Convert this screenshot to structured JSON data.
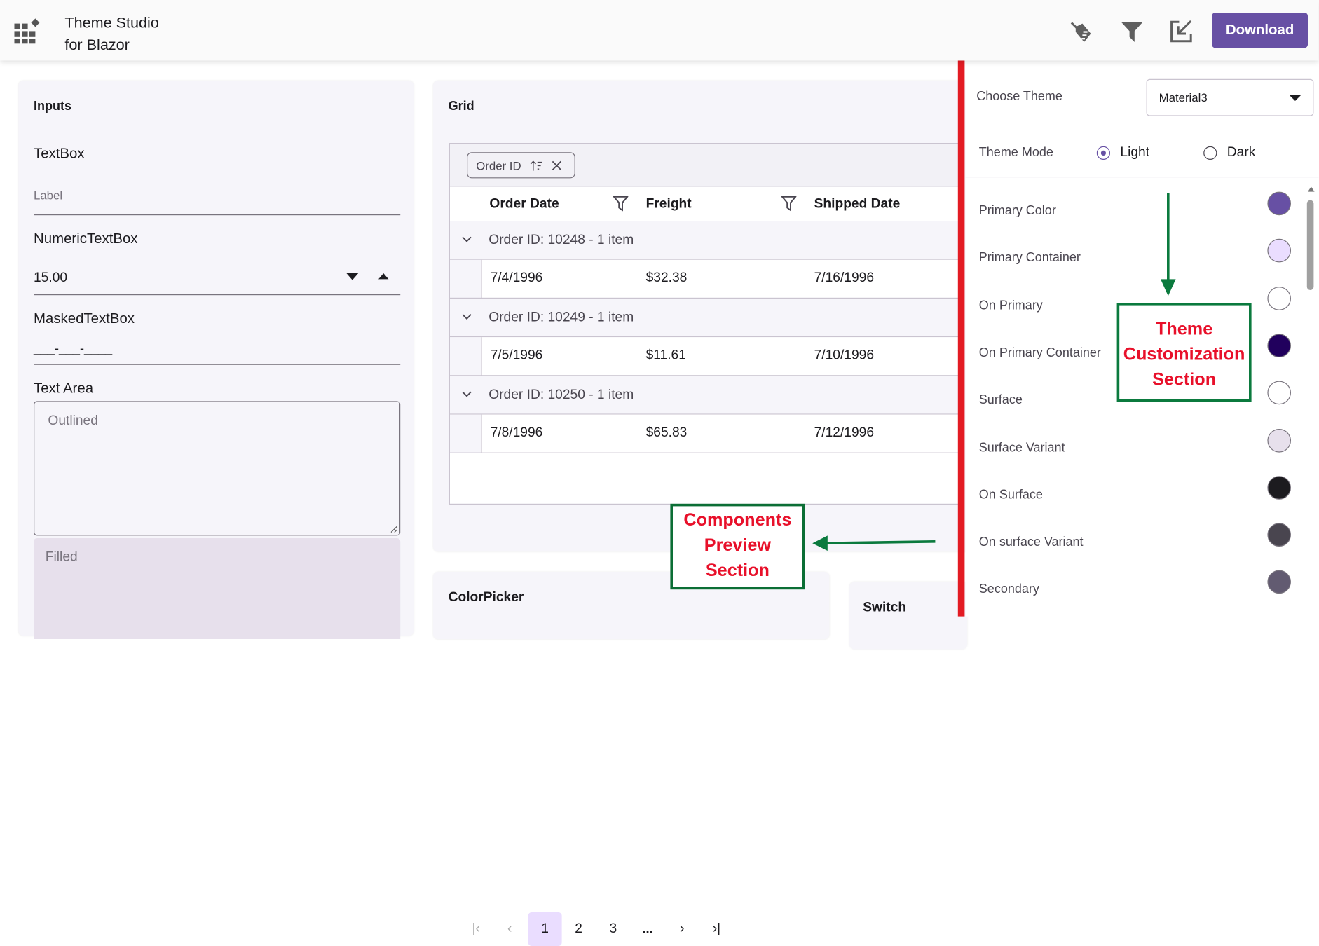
{
  "header": {
    "title_line1": "Theme Studio",
    "title_line2": "for Blazor",
    "download_label": "Download",
    "icons": [
      "app-grid-icon",
      "brush-icon",
      "filter-icon",
      "import-icon"
    ]
  },
  "inputs": {
    "title": "Inputs",
    "textbox_label": "TextBox",
    "textbox_placeholder": "Label",
    "numeric_label": "NumericTextBox",
    "numeric_value": "15.00",
    "masked_label": "MaskedTextBox",
    "masked_value": "___-___-____",
    "textarea_label": "Text Area",
    "outlined_placeholder": "Outlined",
    "filled_placeholder": "Filled"
  },
  "grid": {
    "title": "Grid",
    "group_chip": "Order ID",
    "columns": [
      "Order Date",
      "Freight",
      "Shipped Date"
    ],
    "groups": [
      {
        "caption": "Order ID: 10248 - 1 item",
        "row": [
          "7/4/1996",
          "$32.38",
          "7/16/1996"
        ]
      },
      {
        "caption": "Order ID: 10249 - 1 item",
        "row": [
          "7/5/1996",
          "$11.61",
          "7/10/1996"
        ]
      },
      {
        "caption": "Order ID: 10250 - 1 item",
        "row": [
          "7/8/1996",
          "$65.83",
          "7/12/1996"
        ]
      }
    ],
    "pager": {
      "pages": [
        "1",
        "2",
        "3",
        "..."
      ],
      "current": "1"
    }
  },
  "colorpicker": {
    "title": "ColorPicker"
  },
  "switch": {
    "title": "Switch"
  },
  "annotations": {
    "preview": [
      "Components",
      "Preview",
      "Section"
    ],
    "customization": [
      "Theme",
      "Customization",
      "Section"
    ],
    "box_color": "#0b7a3e",
    "text_color": "#e8102a",
    "divider_color": "#e31b23"
  },
  "settings": {
    "choose_theme_label": "Choose Theme",
    "theme_value": "Material3",
    "theme_mode_label": "Theme Mode",
    "mode_options": [
      "Light",
      "Dark"
    ],
    "mode_selected": "Light",
    "colors": [
      {
        "name": "Primary Color",
        "hex": "#6750a4"
      },
      {
        "name": "Primary Container",
        "hex": "#eaddff"
      },
      {
        "name": "On Primary",
        "hex": "#ffffff"
      },
      {
        "name": "On Primary Container",
        "hex": "#21005d"
      },
      {
        "name": "Surface",
        "hex": "#ffffff"
      },
      {
        "name": "Surface Variant",
        "hex": "#e7e0ec"
      },
      {
        "name": "On Surface",
        "hex": "#1c1b1f"
      },
      {
        "name": "On surface Variant",
        "hex": "#49454f"
      },
      {
        "name": "Secondary",
        "hex": "#625b71"
      }
    ]
  }
}
